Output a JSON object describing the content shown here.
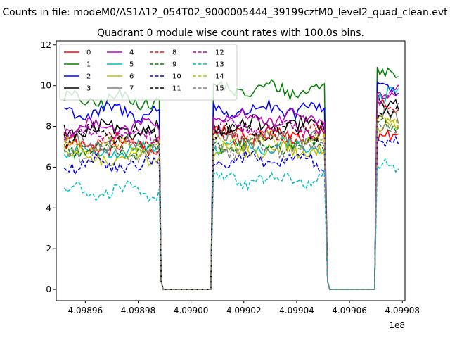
{
  "figure": {
    "suptitle": "Counts in file: modeM0/AS1A12_054T02_9000005444_39199cztM0_level2_quad_clean.evt"
  },
  "chart_data": {
    "type": "line",
    "title": "Quadrant 0 module wise count rates with 100.0s bins.",
    "xlabel": "",
    "ylabel": "",
    "x_offset_label": "1e8",
    "xlim": [
      4.098949,
      4.099081
    ],
    "ylim": [
      -0.55,
      12.2
    ],
    "x_ticks": [
      4.09896,
      4.09898,
      4.099,
      4.09902,
      4.09904,
      4.09906,
      4.09908
    ],
    "x_tick_labels": [
      "4.09896",
      "4.09898",
      "4.09900",
      "4.09902",
      "4.09904",
      "4.09906",
      "4.09908"
    ],
    "y_ticks": [
      0,
      2,
      4,
      6,
      8,
      10,
      12
    ],
    "y_tick_labels": [
      "0",
      "2",
      "4",
      "6",
      "8",
      "10",
      "12"
    ],
    "grid": false,
    "legend_placement": "top-left",
    "legend_columns": 4,
    "time_segments": [
      {
        "on": [
          4.098952,
          4.098988
        ],
        "off_start": 4.0989895
      },
      {
        "on": [
          4.0990085,
          4.099051
        ],
        "off_start": 4.0990525
      },
      {
        "on": [
          4.0990705,
          4.0990785
        ],
        "off_start": null
      }
    ],
    "gap_zero_ranges": [
      [
        4.0989895,
        4.0990075
      ],
      [
        4.0990525,
        4.0990695
      ]
    ],
    "series": [
      {
        "name": "0",
        "color": "#ff0000",
        "dash": "solid",
        "levels": [
          7.0,
          7.6,
          7.3
        ]
      },
      {
        "name": "1",
        "color": "#008000",
        "dash": "solid",
        "levels": [
          9.3,
          9.8,
          10.5
        ]
      },
      {
        "name": "2",
        "color": "#0000ff",
        "dash": "solid",
        "levels": [
          8.7,
          8.8,
          10.0
        ]
      },
      {
        "name": "3",
        "color": "#000000",
        "dash": "solid",
        "levels": [
          7.8,
          8.0,
          9.3
        ]
      },
      {
        "name": "4",
        "color": "#bf00bf",
        "dash": "solid",
        "levels": [
          8.0,
          8.4,
          9.8
        ]
      },
      {
        "name": "5",
        "color": "#00bfbf",
        "dash": "solid",
        "levels": [
          6.8,
          7.0,
          9.6
        ]
      },
      {
        "name": "6",
        "color": "#bfbf00",
        "dash": "solid",
        "levels": [
          6.5,
          6.8,
          8.0
        ]
      },
      {
        "name": "7",
        "color": "#808080",
        "dash": "solid",
        "levels": [
          7.2,
          7.4,
          8.5
        ]
      },
      {
        "name": "8",
        "color": "#ff0000",
        "dash": "dashed",
        "levels": [
          7.3,
          7.6,
          8.9
        ]
      },
      {
        "name": "9",
        "color": "#008000",
        "dash": "dashed",
        "levels": [
          6.9,
          7.1,
          8.2
        ]
      },
      {
        "name": "10",
        "color": "#0000ff",
        "dash": "dashed",
        "levels": [
          6.1,
          6.3,
          7.3
        ]
      },
      {
        "name": "11",
        "color": "#000000",
        "dash": "dashed",
        "levels": [
          7.6,
          7.8,
          8.6
        ]
      },
      {
        "name": "12",
        "color": "#bf00bf",
        "dash": "dashed",
        "levels": [
          7.6,
          7.9,
          9.3
        ]
      },
      {
        "name": "13",
        "color": "#00bfbf",
        "dash": "dashed",
        "levels": [
          4.8,
          5.4,
          5.9
        ]
      },
      {
        "name": "14",
        "color": "#bfbf00",
        "dash": "dashed",
        "levels": [
          7.0,
          7.3,
          8.3
        ]
      },
      {
        "name": "15",
        "color": "#808080",
        "dash": "dashed",
        "levels": [
          6.7,
          6.9,
          7.9
        ]
      }
    ]
  }
}
